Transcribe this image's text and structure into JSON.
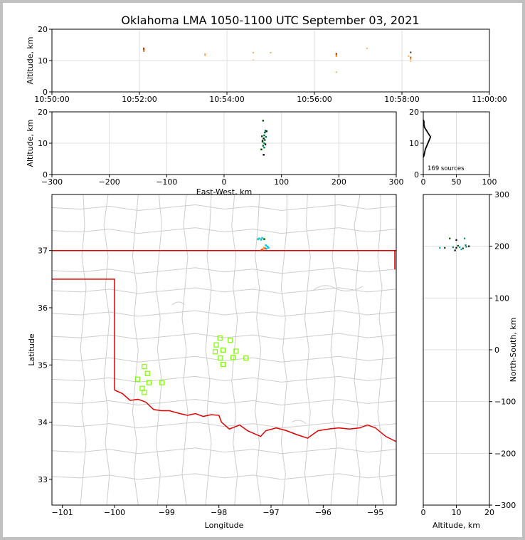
{
  "title": "Oklahoma LMA 1050-1100 UTC September 03, 2021",
  "colors": {
    "state_border": "#e00000",
    "county_lines": "#cccccc",
    "station_marker": "#7cfc00",
    "grid": "#dddddd"
  },
  "chart_data": [
    {
      "id": "time_height",
      "type": "scatter",
      "ylabel": "Altitude, km",
      "ylim": [
        0,
        20
      ],
      "yticks": [
        "0",
        "10",
        "20"
      ],
      "xticks": [
        "10:50:00",
        "10:52:00",
        "10:54:00",
        "10:56:00",
        "10:58:00",
        "11:00:00"
      ],
      "x_minutes_range": [
        0,
        10
      ],
      "points": [
        {
          "t": 2.1,
          "alt": 13.5,
          "color": "#cc3300"
        },
        {
          "t": 2.1,
          "alt": 13.0,
          "color": "#dd6600"
        },
        {
          "t": 2.1,
          "alt": 13.9,
          "color": "#aa2200"
        },
        {
          "t": 3.5,
          "alt": 12.0,
          "color": "#ff9933"
        },
        {
          "t": 3.5,
          "alt": 11.6,
          "color": "#ffbb66"
        },
        {
          "t": 4.6,
          "alt": 12.5,
          "color": "#ffaa55"
        },
        {
          "t": 4.6,
          "alt": 10.2,
          "color": "#ffcc88"
        },
        {
          "t": 5.0,
          "alt": 12.5,
          "color": "#ffaa55"
        },
        {
          "t": 6.5,
          "alt": 11.9,
          "color": "#cc4400"
        },
        {
          "t": 6.5,
          "alt": 12.2,
          "color": "#993300"
        },
        {
          "t": 6.5,
          "alt": 11.4,
          "color": "#ff8800"
        },
        {
          "t": 6.5,
          "alt": 6.3,
          "color": "#ffaa55"
        },
        {
          "t": 7.2,
          "alt": 13.9,
          "color": "#ffaa55"
        },
        {
          "t": 8.2,
          "alt": 12.6,
          "color": "#222222"
        },
        {
          "t": 8.2,
          "alt": 11.0,
          "color": "#aa5500"
        },
        {
          "t": 8.2,
          "alt": 10.5,
          "color": "#ff8800"
        },
        {
          "t": 8.2,
          "alt": 9.8,
          "color": "#ffbb66"
        },
        {
          "t": 8.15,
          "alt": 11.4,
          "color": "#ffaa55"
        }
      ]
    },
    {
      "id": "ew_height",
      "type": "scatter",
      "xlabel": "East-West, km",
      "ylabel": "Altitude, km",
      "xlim": [
        -300,
        300
      ],
      "ylim": [
        0,
        20
      ],
      "xticks": [
        "−300",
        "−200",
        "−100",
        "0",
        "100",
        "200",
        "300"
      ],
      "yticks": [
        "0",
        "10",
        "20"
      ],
      "points": [
        {
          "x": 68,
          "alt": 17.2
        },
        {
          "x": 72,
          "alt": 14.0
        },
        {
          "x": 74,
          "alt": 13.8
        },
        {
          "x": 70,
          "alt": 12.5
        },
        {
          "x": 66,
          "alt": 12.2
        },
        {
          "x": 73,
          "alt": 12.0
        },
        {
          "x": 69,
          "alt": 11.5
        },
        {
          "x": 71,
          "alt": 11.0
        },
        {
          "x": 67,
          "alt": 10.5
        },
        {
          "x": 70,
          "alt": 10.0
        },
        {
          "x": 72,
          "alt": 9.6
        },
        {
          "x": 68,
          "alt": 9.2
        },
        {
          "x": 65,
          "alt": 8.0
        },
        {
          "x": 70,
          "alt": 8.6
        },
        {
          "x": 69,
          "alt": 6.3
        },
        {
          "x": 71,
          "alt": 13.4
        },
        {
          "x": 67,
          "alt": 10.8
        }
      ]
    },
    {
      "id": "alt_hist",
      "type": "bar",
      "xlim": [
        0,
        100
      ],
      "ylim": [
        0,
        20
      ],
      "xticks": [
        "0",
        "50",
        "100"
      ],
      "yticks": [
        "0",
        "10",
        "20"
      ],
      "annotation": "169 sources",
      "bins": [
        {
          "alt": 6,
          "count": 1
        },
        {
          "alt": 7,
          "count": 2
        },
        {
          "alt": 8,
          "count": 3
        },
        {
          "alt": 9,
          "count": 5
        },
        {
          "alt": 10,
          "count": 7
        },
        {
          "alt": 11,
          "count": 9
        },
        {
          "alt": 12,
          "count": 11
        },
        {
          "alt": 13,
          "count": 8
        },
        {
          "alt": 14,
          "count": 5
        },
        {
          "alt": 15,
          "count": 2
        },
        {
          "alt": 16,
          "count": 1
        },
        {
          "alt": 17,
          "count": 1
        }
      ]
    },
    {
      "id": "plan_view",
      "type": "scatter",
      "xlabel": "Longitude",
      "ylabel": "Latitude",
      "xlim": [
        -101.2,
        -94.6
      ],
      "ylim": [
        32.55,
        37.98
      ],
      "xticks": [
        "−101",
        "−100",
        "−99",
        "−98",
        "−97",
        "−96",
        "−95"
      ],
      "yticks": [
        "33",
        "34",
        "35",
        "36",
        "37"
      ],
      "stations": [
        {
          "lon": -97.98,
          "lat": 35.47
        },
        {
          "lon": -97.78,
          "lat": 35.43
        },
        {
          "lon": -98.05,
          "lat": 35.35
        },
        {
          "lon": -97.92,
          "lat": 35.26
        },
        {
          "lon": -98.07,
          "lat": 35.23
        },
        {
          "lon": -97.67,
          "lat": 35.24
        },
        {
          "lon": -97.73,
          "lat": 35.13
        },
        {
          "lon": -97.97,
          "lat": 35.12
        },
        {
          "lon": -97.48,
          "lat": 35.12
        },
        {
          "lon": -97.92,
          "lat": 35.01
        },
        {
          "lon": -99.43,
          "lat": 34.97
        },
        {
          "lon": -99.37,
          "lat": 34.85
        },
        {
          "lon": -99.56,
          "lat": 34.75
        },
        {
          "lon": -99.34,
          "lat": 34.69
        },
        {
          "lon": -99.09,
          "lat": 34.69
        },
        {
          "lon": -99.47,
          "lat": 34.59
        },
        {
          "lon": -99.43,
          "lat": 34.52
        }
      ],
      "sources": [
        {
          "lon": -97.25,
          "lat": 37.2,
          "color": "#00cccc"
        },
        {
          "lon": -97.22,
          "lat": 37.21,
          "color": "#00cccc"
        },
        {
          "lon": -97.19,
          "lat": 37.19,
          "color": "#00cccc"
        },
        {
          "lon": -97.17,
          "lat": 37.22,
          "color": "#00cccc"
        },
        {
          "lon": -97.13,
          "lat": 37.2,
          "color": "#006600"
        },
        {
          "lon": -97.1,
          "lat": 37.09,
          "color": "#00cccc"
        },
        {
          "lon": -97.07,
          "lat": 37.07,
          "color": "#00cccc"
        },
        {
          "lon": -97.05,
          "lat": 37.05,
          "color": "#00cccc"
        },
        {
          "lon": -97.12,
          "lat": 37.04,
          "color": "#cc3300"
        },
        {
          "lon": -97.16,
          "lat": 37.02,
          "color": "#ff8800"
        },
        {
          "lon": -97.18,
          "lat": 37.01,
          "color": "#cc3300"
        },
        {
          "lon": -97.09,
          "lat": 37.03,
          "color": "#00cccc"
        },
        {
          "lon": -97.14,
          "lat": 37.05,
          "color": "#ffaa55"
        }
      ]
    },
    {
      "id": "alt_ns",
      "type": "scatter",
      "xlabel": "Altitude, km",
      "ylabel": "North-South, km",
      "xlim": [
        0,
        20
      ],
      "ylim": [
        -300,
        300
      ],
      "xticks": [
        "0",
        "10",
        "20"
      ],
      "yticks": [
        "−300",
        "−200",
        "−100",
        "0",
        "100",
        "200",
        "300"
      ],
      "points": [
        {
          "alt": 8.0,
          "y": 215
        },
        {
          "alt": 12.5,
          "y": 215
        },
        {
          "alt": 10.0,
          "y": 212
        },
        {
          "alt": 5.0,
          "y": 197
        },
        {
          "alt": 6.5,
          "y": 197
        },
        {
          "alt": 9.0,
          "y": 198
        },
        {
          "alt": 10.0,
          "y": 197
        },
        {
          "alt": 11.0,
          "y": 198
        },
        {
          "alt": 12.0,
          "y": 196
        },
        {
          "alt": 13.0,
          "y": 199
        },
        {
          "alt": 13.8,
          "y": 200
        },
        {
          "alt": 11.5,
          "y": 194
        },
        {
          "alt": 10.5,
          "y": 201
        },
        {
          "alt": 12.8,
          "y": 202
        },
        {
          "alt": 9.6,
          "y": 192
        }
      ]
    }
  ]
}
